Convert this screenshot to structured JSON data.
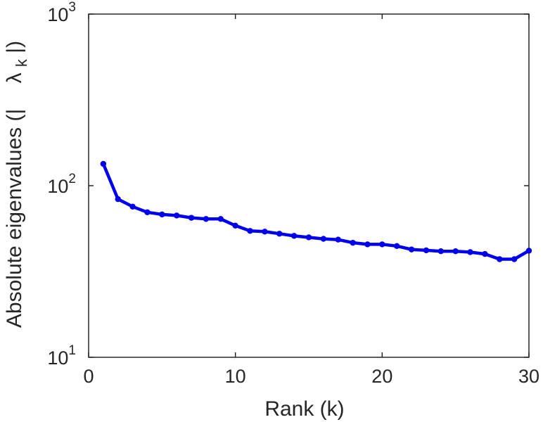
{
  "chart_data": {
    "type": "line",
    "title": "",
    "xlabel": "Rank (k)",
    "ylabel": {
      "prefix": "Absolute eigenvalues (|",
      "symbol": "λ",
      "subscript": "k",
      "suffix": "|)"
    },
    "x_scale": "linear",
    "y_scale": "log",
    "xlim": [
      0,
      30
    ],
    "ylim": [
      10,
      1000
    ],
    "x_ticks": [
      "0",
      "10",
      "20",
      "30"
    ],
    "y_ticks": [
      {
        "base": "10",
        "exp": "1"
      },
      {
        "base": "10",
        "exp": "2"
      },
      {
        "base": "10",
        "exp": "3"
      }
    ],
    "grid": false,
    "legend": "none",
    "series": [
      {
        "color": "#0000ee",
        "marker": "dot",
        "x": [
          1,
          2,
          3,
          4,
          5,
          6,
          7,
          8,
          9,
          10,
          11,
          12,
          13,
          14,
          15,
          16,
          17,
          18,
          19,
          20,
          21,
          22,
          23,
          24,
          25,
          26,
          27,
          28,
          29,
          30
        ],
        "y": [
          134,
          83.5,
          75.5,
          70,
          68,
          67,
          65,
          64,
          64,
          58.5,
          54.5,
          54,
          52.5,
          51,
          50,
          49,
          48.5,
          46.5,
          45.5,
          45.5,
          44.5,
          42.5,
          42,
          41.5,
          41.5,
          41,
          40,
          37.3,
          37.3,
          41.8
        ]
      }
    ]
  }
}
